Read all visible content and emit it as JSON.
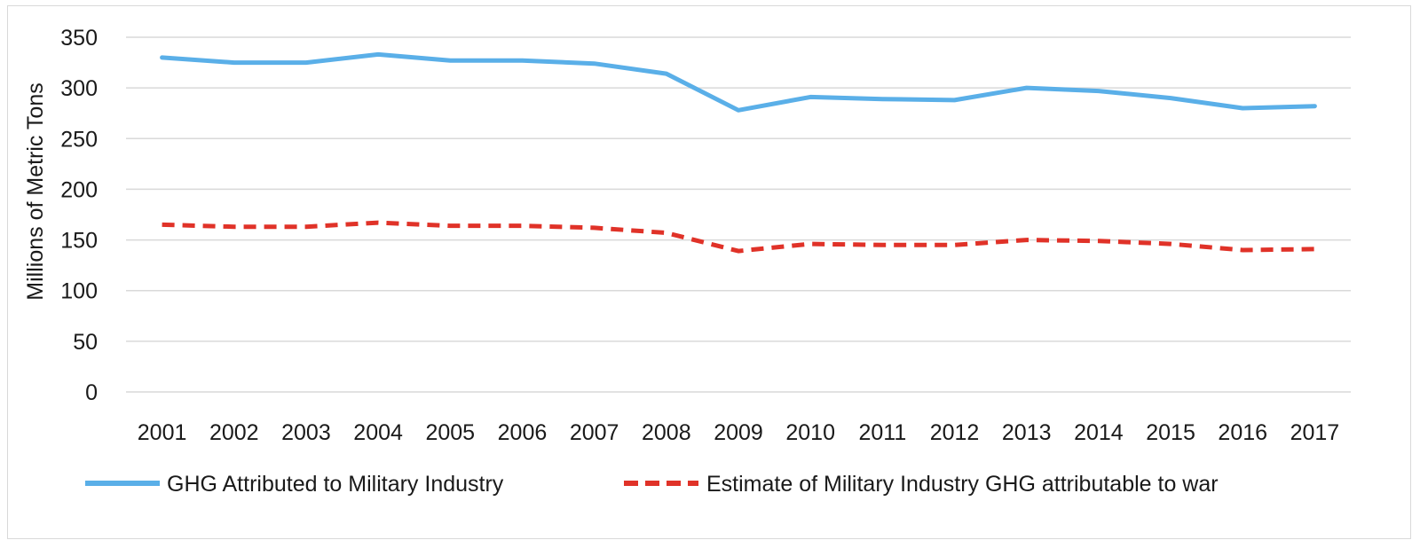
{
  "chart_data": {
    "type": "line",
    "title": "",
    "xlabel": "",
    "ylabel": "Millions of Metric Tons",
    "ylim": [
      0,
      350
    ],
    "yticks": [
      0,
      50,
      100,
      150,
      200,
      250,
      300,
      350
    ],
    "grid": true,
    "legend_position": "bottom",
    "x": [
      "2001",
      "2002",
      "2003",
      "2004",
      "2005",
      "2006",
      "2007",
      "2008",
      "2009",
      "2010",
      "2011",
      "2012",
      "2013",
      "2014",
      "2015",
      "2016",
      "2017"
    ],
    "series": [
      {
        "name": "GHG Attributed to Military Industry",
        "color": "#5aafe8",
        "style": "solid",
        "values": [
          330,
          325,
          325,
          333,
          327,
          327,
          324,
          314,
          278,
          291,
          289,
          288,
          300,
          297,
          290,
          280,
          282
        ]
      },
      {
        "name": "Estimate of Military Industry GHG attributable to war",
        "color": "#e03228",
        "style": "dashed",
        "values": [
          165,
          163,
          163,
          167,
          164,
          164,
          162,
          157,
          139,
          146,
          145,
          145,
          150,
          149,
          146,
          140,
          141
        ]
      }
    ]
  }
}
